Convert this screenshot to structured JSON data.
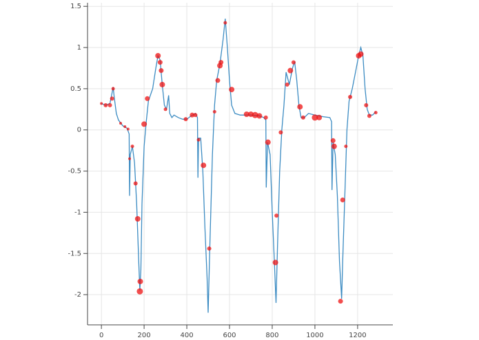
{
  "chart_data": {
    "type": "line-scatter",
    "grid": true,
    "xlim": [
      -65,
      1365
    ],
    "ylim": [
      -2.35,
      1.51
    ],
    "xticks": [
      0,
      200,
      400,
      600,
      800,
      1000,
      1200
    ],
    "yticks": [
      1.5,
      1,
      0.5,
      0,
      -0.5,
      -1,
      -1.5,
      -2
    ],
    "line": {
      "color": "#3b8bc2",
      "x": [
        0,
        20,
        40,
        50,
        55,
        60,
        70,
        80,
        100,
        120,
        130,
        132,
        135,
        145,
        155,
        165,
        175,
        180,
        185,
        190,
        200,
        210,
        220,
        240,
        255,
        265,
        275,
        285,
        295,
        305,
        315,
        320,
        330,
        340,
        360,
        380,
        400,
        420,
        440,
        450,
        452,
        455,
        465,
        475,
        485,
        495,
        500,
        508,
        520,
        530,
        540,
        555,
        570,
        580,
        590,
        600,
        610,
        625,
        650,
        700,
        740,
        760,
        770,
        772,
        778,
        790,
        800,
        810,
        818,
        825,
        835,
        845,
        855,
        865,
        870,
        880,
        895,
        905,
        915,
        925,
        935,
        950,
        970,
        1000,
        1040,
        1070,
        1078,
        1080,
        1085,
        1095,
        1105,
        1115,
        1125,
        1130,
        1140,
        1150,
        1160,
        1175,
        1190,
        1205,
        1215,
        1225,
        1235,
        1245,
        1255,
        1270,
        1285
      ],
      "values": [
        0.32,
        0.3,
        0.32,
        0.45,
        0.52,
        0.4,
        0.2,
        0.12,
        0.05,
        0.02,
        -0.05,
        -0.8,
        -0.3,
        -0.2,
        -0.4,
        -0.9,
        -1.6,
        -1.95,
        -1.7,
        -0.9,
        -0.2,
        0.1,
        0.35,
        0.5,
        0.75,
        0.9,
        0.85,
        0.55,
        0.3,
        0.25,
        0.42,
        0.2,
        0.15,
        0.18,
        0.15,
        0.13,
        0.13,
        0.17,
        0.2,
        0.15,
        -0.58,
        -0.1,
        -0.1,
        -0.5,
        -1.2,
        -1.8,
        -2.22,
        -1.4,
        -0.3,
        0.3,
        0.6,
        0.8,
        1.1,
        1.35,
        1.0,
        0.6,
        0.3,
        0.2,
        0.18,
        0.18,
        0.17,
        0.15,
        0.12,
        -0.7,
        -0.15,
        -0.3,
        -1.0,
        -1.6,
        -2.1,
        -1.4,
        -0.5,
        0.0,
        0.3,
        0.7,
        0.65,
        0.55,
        0.75,
        0.83,
        0.6,
        0.3,
        0.15,
        0.15,
        0.2,
        0.18,
        0.16,
        0.15,
        0.1,
        -0.73,
        -0.15,
        -0.3,
        -0.8,
        -1.6,
        -2.05,
        -1.6,
        -0.8,
        0.0,
        0.35,
        0.5,
        0.7,
        0.9,
        1.0,
        0.9,
        0.5,
        0.25,
        0.18,
        0.18,
        0.22
      ]
    },
    "scatter": {
      "color": "#ee1111",
      "x": [
        0,
        20,
        40,
        50,
        55,
        90,
        110,
        125,
        132,
        145,
        160,
        170,
        180,
        182,
        200,
        215,
        265,
        275,
        280,
        285,
        300,
        395,
        425,
        440,
        455,
        478,
        505,
        530,
        545,
        555,
        560,
        580,
        610,
        680,
        700,
        720,
        740,
        770,
        780,
        815,
        820,
        840,
        870,
        885,
        900,
        930,
        945,
        1000,
        1020,
        1085,
        1090,
        1120,
        1130,
        1145,
        1165,
        1205,
        1215,
        1240,
        1255,
        1285
      ],
      "values": [
        0.32,
        0.3,
        0.3,
        0.38,
        0.5,
        0.08,
        0.04,
        0.01,
        -0.35,
        -0.2,
        -0.65,
        -1.08,
        -1.96,
        -1.84,
        0.07,
        0.38,
        0.9,
        0.82,
        0.72,
        0.55,
        0.25,
        0.13,
        0.18,
        0.18,
        -0.12,
        -0.43,
        -1.44,
        0.22,
        0.6,
        0.78,
        0.82,
        1.3,
        0.49,
        0.19,
        0.19,
        0.18,
        0.17,
        0.15,
        -0.15,
        -1.61,
        -1.04,
        -0.03,
        0.55,
        0.72,
        0.82,
        0.28,
        0.15,
        0.15,
        0.15,
        -0.13,
        -0.2,
        -2.08,
        -0.85,
        -0.2,
        0.4,
        0.9,
        0.92,
        0.3,
        0.17,
        0.21
      ],
      "sizes": [
        4,
        6,
        6,
        6,
        5,
        4,
        4,
        4,
        4,
        5,
        6,
        8,
        9,
        8,
        8,
        7,
        8,
        7,
        7,
        8,
        5,
        6,
        7,
        6,
        5,
        8,
        6,
        5,
        7,
        8,
        7,
        5,
        8,
        8,
        8,
        9,
        8,
        6,
        8,
        8,
        6,
        6,
        6,
        8,
        6,
        8,
        6,
        9,
        8,
        7,
        8,
        7,
        7,
        5,
        6,
        8,
        8,
        6,
        6,
        5
      ]
    }
  }
}
